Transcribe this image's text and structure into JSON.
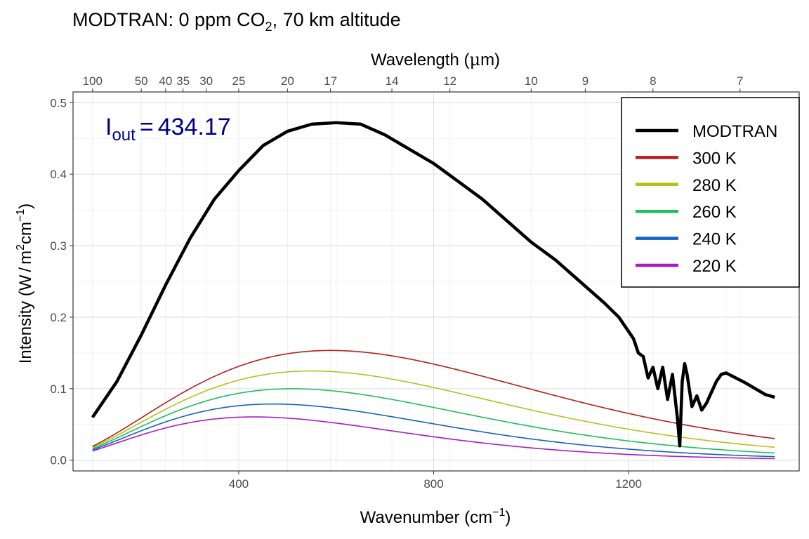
{
  "chart_data": {
    "type": "line",
    "title_main": "MODTRAN: 0 ppm CO",
    "title_sub": "2",
    "title_rest": ", 70 km altitude",
    "xlabel_main": "Wavenumber (cm",
    "xlabel_sup": "−1",
    "xlabel_end": ")",
    "ylabel_main": "Intensity (W",
    "ylabel_slash": "/",
    "ylabel_m": "m",
    "ylabel_m_sup": "2",
    "ylabel_cm": "cm",
    "ylabel_cm_sup": "−1",
    "ylabel_end": ")",
    "top_axis_label_main": "Wavelength (",
    "top_axis_label_mu": "μ",
    "top_axis_label_end": "m)",
    "annotation_I": "I",
    "annotation_sub": "out",
    "annotation_eq": "=",
    "annotation_value": "434.17",
    "xlim": [
      60,
      1550
    ],
    "ylim": [
      -0.015,
      0.515
    ],
    "x_ticks": [
      400,
      800,
      1200
    ],
    "x_tick_labels": [
      "400",
      "800",
      "1200"
    ],
    "y_ticks": [
      0.0,
      0.1,
      0.2,
      0.3,
      0.4,
      0.5
    ],
    "y_tick_labels": [
      "0.0",
      "0.1",
      "0.2",
      "0.3",
      "0.4",
      "0.5"
    ],
    "top_ticks_um": [
      100,
      50,
      40,
      35,
      30,
      25,
      20,
      17,
      14,
      12,
      10,
      9,
      8,
      7
    ],
    "top_tick_labels": [
      "100",
      "50",
      "40",
      "35",
      "30",
      "25",
      "20",
      "17",
      "14",
      "12",
      "10",
      "9",
      "8",
      "7"
    ],
    "legend_position": "top-right",
    "grid": true,
    "x_range": [
      100,
      1500
    ],
    "series": [
      {
        "name": "MODTRAN",
        "color": "#000000",
        "width": 4.5,
        "values": [
          [
            100,
            0.06
          ],
          [
            150,
            0.11
          ],
          [
            200,
            0.175
          ],
          [
            250,
            0.245
          ],
          [
            300,
            0.31
          ],
          [
            350,
            0.365
          ],
          [
            400,
            0.405
          ],
          [
            450,
            0.44
          ],
          [
            500,
            0.46
          ],
          [
            550,
            0.47
          ],
          [
            600,
            0.472
          ],
          [
            650,
            0.47
          ],
          [
            700,
            0.455
          ],
          [
            750,
            0.435
          ],
          [
            800,
            0.415
          ],
          [
            850,
            0.39
          ],
          [
            900,
            0.365
          ],
          [
            950,
            0.335
          ],
          [
            1000,
            0.305
          ],
          [
            1050,
            0.28
          ],
          [
            1100,
            0.25
          ],
          [
            1150,
            0.22
          ],
          [
            1180,
            0.2
          ],
          [
            1200,
            0.18
          ],
          [
            1210,
            0.17
          ],
          [
            1220,
            0.15
          ],
          [
            1230,
            0.145
          ],
          [
            1240,
            0.115
          ],
          [
            1250,
            0.13
          ],
          [
            1260,
            0.1
          ],
          [
            1270,
            0.13
          ],
          [
            1280,
            0.085
          ],
          [
            1290,
            0.12
          ],
          [
            1300,
            0.06
          ],
          [
            1305,
            0.02
          ],
          [
            1310,
            0.11
          ],
          [
            1315,
            0.135
          ],
          [
            1320,
            0.12
          ],
          [
            1330,
            0.075
          ],
          [
            1340,
            0.09
          ],
          [
            1350,
            0.07
          ],
          [
            1360,
            0.08
          ],
          [
            1370,
            0.095
          ],
          [
            1380,
            0.11
          ],
          [
            1390,
            0.12
          ],
          [
            1400,
            0.122
          ],
          [
            1420,
            0.115
          ],
          [
            1440,
            0.108
          ],
          [
            1460,
            0.1
          ],
          [
            1480,
            0.092
          ],
          [
            1500,
            0.088
          ]
        ]
      },
      {
        "name": "300 K",
        "color": "#b81d1d",
        "temp": 300,
        "width": 1.6
      },
      {
        "name": "280 K",
        "color": "#b5c21a",
        "temp": 280,
        "width": 1.6
      },
      {
        "name": "260 K",
        "color": "#1fbf5a",
        "temp": 260,
        "width": 1.6
      },
      {
        "name": "240 K",
        "color": "#1761c2",
        "temp": 240,
        "width": 1.6
      },
      {
        "name": "220 K",
        "color": "#a51fbf",
        "temp": 220,
        "width": 1.6
      }
    ]
  }
}
